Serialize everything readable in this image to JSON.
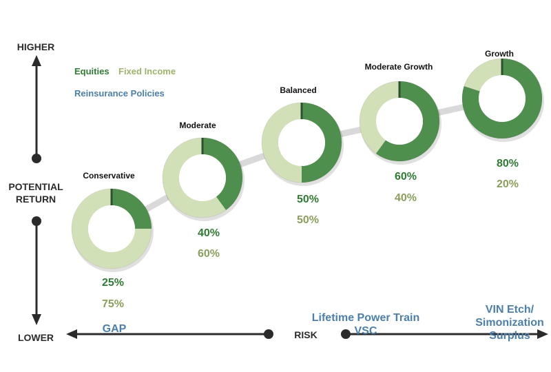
{
  "axis": {
    "higher": "HIGHER",
    "potential_return": "POTENTIAL RETURN",
    "potential_return_line1": "POTENTIAL",
    "potential_return_line2": "RETURN",
    "lower": "LOWER",
    "risk": "RISK"
  },
  "legend": {
    "equities": "Equities",
    "fixed_income": "Fixed Income",
    "reinsurance": "Reinsurance Policies"
  },
  "colors": {
    "equities": "#4e8f4e",
    "fixed_income": "#d2e0b8",
    "divider": "#2f4f2f",
    "connector": "#d9d9d9",
    "equities_text": "#2e7d32",
    "fixed_income_text": "#8aa05a",
    "reinsurance_text": "#4a7fae"
  },
  "chart_data": {
    "type": "pie",
    "title": "",
    "series": [
      {
        "name": "Conservative",
        "equities": 25,
        "fixed_income": 75,
        "equities_label": "25%",
        "fixed_income_label": "75%"
      },
      {
        "name": "Moderate",
        "equities": 40,
        "fixed_income": 60,
        "equities_label": "40%",
        "fixed_income_label": "60%"
      },
      {
        "name": "Balanced",
        "equities": 50,
        "fixed_income": 50,
        "equities_label": "50%",
        "fixed_income_label": "50%"
      },
      {
        "name": "Moderate Growth",
        "equities": 60,
        "fixed_income": 40,
        "equities_label": "60%",
        "fixed_income_label": "40%"
      },
      {
        "name": "Growth",
        "equities": 80,
        "fixed_income": 20,
        "equities_label": "80%",
        "fixed_income_label": "20%"
      }
    ]
  },
  "products": {
    "gap": "GAP",
    "power_train_line1": "Lifetime Power Train",
    "power_train_line2": "VSC",
    "vin_line1": "VIN Etch/",
    "vin_line2": "Simonization",
    "vin_line3": "Surplus"
  }
}
